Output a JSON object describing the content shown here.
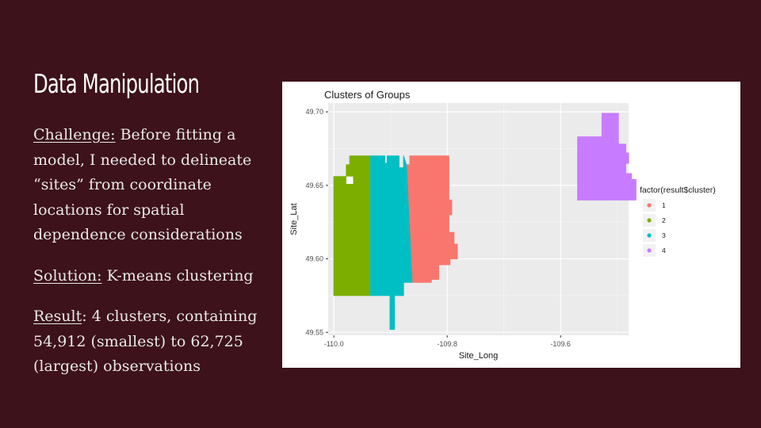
{
  "slide": {
    "title": "Data Manipulation",
    "paragraphs": [
      {
        "label": "Challenge:",
        "text": " Before fitting a model, I needed to delineate “sites” from coordinate locations for spatial dependence considerations"
      },
      {
        "label": "Solution:",
        "text": " K-means clustering"
      },
      {
        "label": "Result",
        "text": ": 4 clusters, containing 54,912 (smallest) to 62,725 (largest) observations"
      }
    ]
  },
  "colors": {
    "background": "#3d121a",
    "panel_bg": "#ebebeb",
    "cluster_1": "#f8766d",
    "cluster_2": "#7cae00",
    "cluster_3": "#00bfc4",
    "cluster_4": "#c77cff"
  },
  "chart_data": {
    "type": "scatter",
    "title": "Clusters of Groups",
    "xlabel": "Site_Long",
    "ylabel": "Site_Lat",
    "xlim": [
      -110.01,
      -109.48
    ],
    "ylim": [
      49.548,
      49.706
    ],
    "x_ticks": [
      {
        "value": -110.0,
        "label": "-110.0"
      },
      {
        "value": -109.8,
        "label": "-109.8"
      },
      {
        "value": -109.6,
        "label": "-109.6"
      }
    ],
    "y_ticks": [
      {
        "value": 49.55,
        "label": "49.55"
      },
      {
        "value": 49.6,
        "label": "49.60"
      },
      {
        "value": 49.65,
        "label": "49.65"
      },
      {
        "value": 49.7,
        "label": "49.70"
      }
    ],
    "grid": true,
    "legend": {
      "title": "factor(result$cluster)",
      "placement": "right",
      "entries": [
        {
          "label": "1",
          "color": "#f8766d"
        },
        {
          "label": "2",
          "color": "#7cae00"
        },
        {
          "label": "3",
          "color": "#00bfc4"
        },
        {
          "label": "4",
          "color": "#c77cff"
        }
      ]
    },
    "series": [
      {
        "name": "1",
        "color": "#f8766d",
        "regions": [
          [
            [
              -109.866,
              49.67
            ],
            [
              -109.797,
              49.67
            ],
            [
              -109.797,
              49.64
            ],
            [
              -109.792,
              49.64
            ],
            [
              -109.792,
              49.63
            ],
            [
              -109.797,
              49.63
            ],
            [
              -109.797,
              49.618
            ],
            [
              -109.788,
              49.618
            ],
            [
              -109.788,
              49.61
            ],
            [
              -109.782,
              49.61
            ],
            [
              -109.782,
              49.6
            ],
            [
              -109.795,
              49.6
            ],
            [
              -109.795,
              49.596
            ],
            [
              -109.815,
              49.596
            ],
            [
              -109.815,
              49.586
            ],
            [
              -109.828,
              49.586
            ],
            [
              -109.828,
              49.584
            ],
            [
              -109.862,
              49.584
            ],
            [
              -109.872,
              49.664
            ],
            [
              -109.866,
              49.664
            ]
          ]
        ]
      },
      {
        "name": "2",
        "color": "#7cae00",
        "regions": [
          [
            [
              -109.988,
              49.656
            ],
            [
              -109.978,
              49.656
            ],
            [
              -109.978,
              49.664
            ],
            [
              -109.972,
              49.664
            ],
            [
              -109.972,
              49.67
            ],
            [
              -109.935,
              49.67
            ],
            [
              -109.935,
              49.575
            ],
            [
              -110.0,
              49.575
            ],
            [
              -110.0,
              49.656
            ]
          ]
        ],
        "holes": [
          [
            [
              -109.978,
              49.656
            ],
            [
              -109.966,
              49.656
            ],
            [
              -109.966,
              49.651
            ],
            [
              -109.978,
              49.651
            ]
          ]
        ]
      },
      {
        "name": "3",
        "color": "#00bfc4",
        "regions": [
          [
            [
              -109.935,
              49.67
            ],
            [
              -109.91,
              49.67
            ],
            [
              -109.91,
              49.665
            ],
            [
              -109.906,
              49.665
            ],
            [
              -109.906,
              49.67
            ],
            [
              -109.885,
              49.67
            ],
            [
              -109.885,
              49.662
            ],
            [
              -109.877,
              49.662
            ],
            [
              -109.877,
              49.67
            ],
            [
              -109.872,
              49.664
            ],
            [
              -109.862,
              49.584
            ],
            [
              -109.877,
              49.584
            ],
            [
              -109.877,
              49.575
            ],
            [
              -109.893,
              49.575
            ],
            [
              -109.893,
              49.552
            ],
            [
              -109.901,
              49.552
            ],
            [
              -109.901,
              49.575
            ],
            [
              -109.935,
              49.575
            ]
          ]
        ]
      },
      {
        "name": "4",
        "color": "#c77cff",
        "regions": [
          [
            [
              -109.527,
              49.699
            ],
            [
              -109.498,
              49.699
            ],
            [
              -109.498,
              49.678
            ],
            [
              -109.485,
              49.678
            ],
            [
              -109.485,
              49.672
            ],
            [
              -109.48,
              49.672
            ],
            [
              -109.48,
              49.665
            ],
            [
              -109.485,
              49.665
            ],
            [
              -109.485,
              49.658
            ],
            [
              -109.475,
              49.658
            ],
            [
              -109.475,
              49.654
            ],
            [
              -109.467,
              49.654
            ],
            [
              -109.467,
              49.64
            ],
            [
              -109.57,
              49.64
            ],
            [
              -109.57,
              49.683
            ],
            [
              -109.527,
              49.683
            ]
          ]
        ]
      }
    ]
  }
}
